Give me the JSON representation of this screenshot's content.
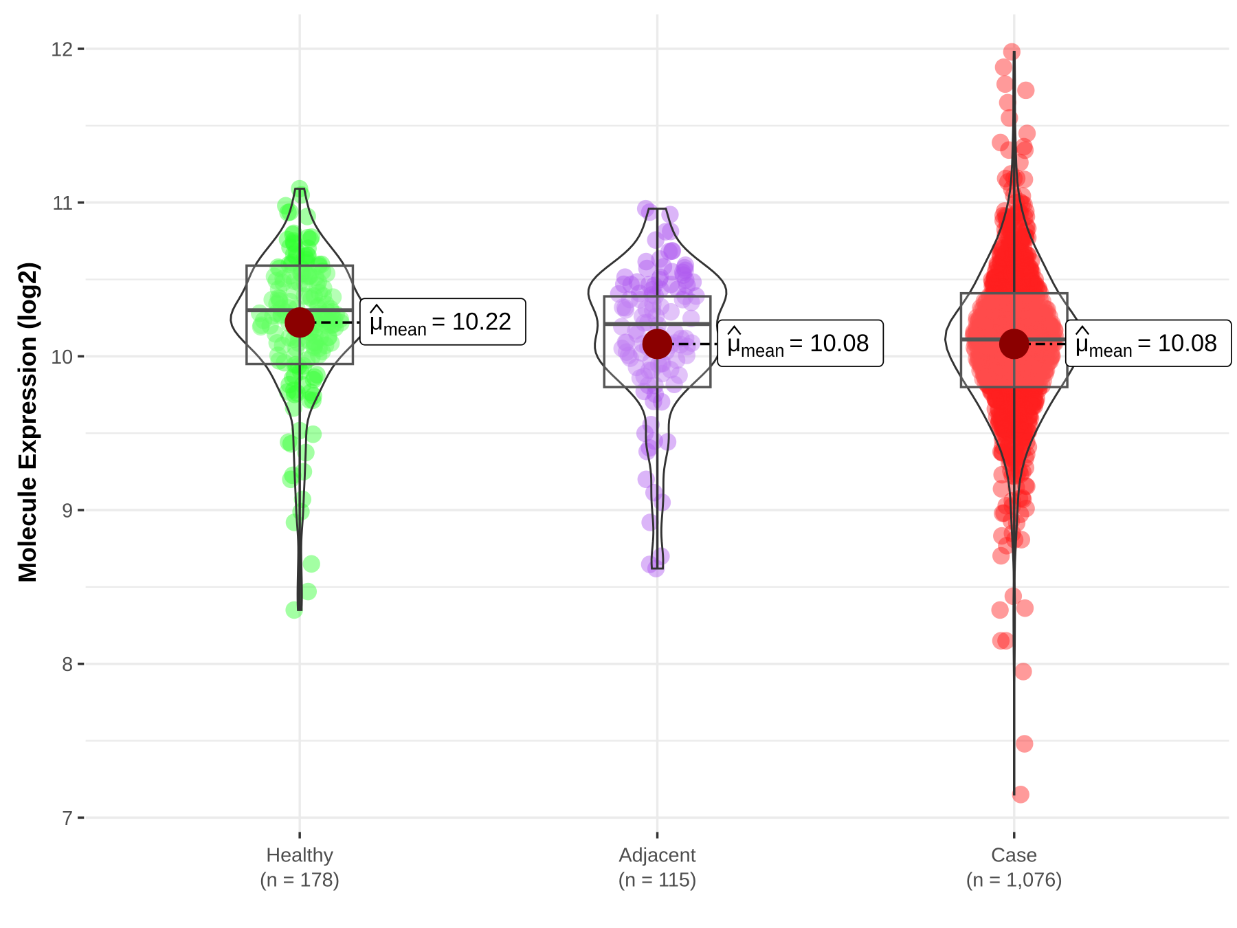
{
  "chart_data": {
    "type": "violin",
    "title": "",
    "xlabel": "",
    "ylabel": "Molecule Expression (log2)",
    "ylim": [
      6.8,
      12.2
    ],
    "yticks": [
      7,
      8,
      9,
      10,
      11,
      12
    ],
    "grid": true,
    "mean_label_prefix": "mean",
    "groups": [
      {
        "name": "Healthy",
        "n_label": "(n = 178)",
        "n": 178,
        "color": "#33ff33",
        "min": 8.35,
        "q1": 9.95,
        "median": 10.3,
        "q3": 10.59,
        "max": 11.09,
        "mean": 10.22,
        "mean_label": "= 10.22",
        "sd": 0.45,
        "outliers": [
          8.35,
          8.47,
          8.65,
          8.92,
          9.07,
          9.2,
          9.25,
          11.09,
          11.05
        ]
      },
      {
        "name": "Adjacent",
        "n_label": "(n = 115)",
        "n": 115,
        "color": "#b05cf0",
        "min": 8.62,
        "q1": 9.8,
        "median": 10.21,
        "q3": 10.39,
        "max": 10.96,
        "mean": 10.08,
        "mean_label": "= 10.08",
        "sd": 0.45,
        "outliers": [
          8.62,
          8.7,
          9.05,
          8.92,
          9.2,
          10.96
        ]
      },
      {
        "name": "Case",
        "n_label": "(n = 1,076)",
        "n": 1076,
        "color": "#ff2020",
        "min": 7.15,
        "q1": 9.8,
        "median": 10.11,
        "q3": 10.41,
        "max": 11.98,
        "mean": 10.08,
        "mean_label": "= 10.08",
        "sd": 0.5,
        "outliers": [
          7.15,
          7.48,
          7.95,
          8.15,
          8.15,
          8.35,
          8.44,
          11.98,
          11.88,
          11.73,
          11.65,
          11.55,
          11.45
        ]
      }
    ]
  }
}
